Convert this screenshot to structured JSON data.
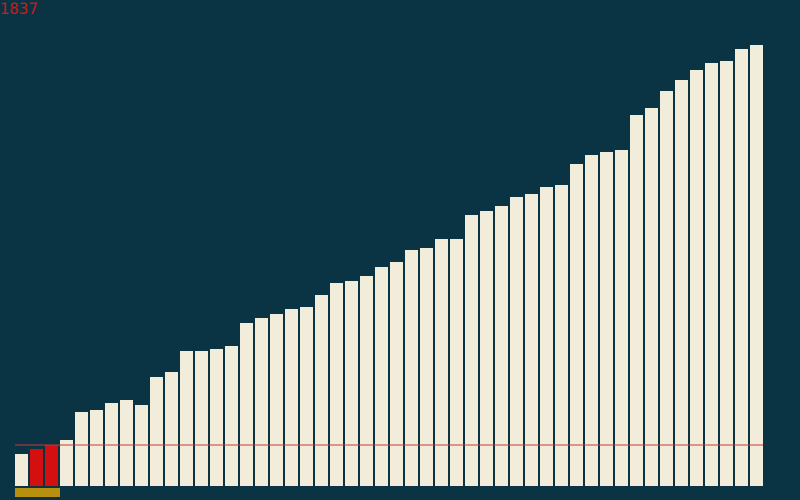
{
  "step_counter": "1837",
  "colors": {
    "background": "#0a3443",
    "bar_default": "#f2ecda",
    "bar_highlight": "#d40f0f",
    "reference_line": "#c63a3a",
    "range_marker": "#b8900f",
    "counter_text": "#d41b1b"
  },
  "chart_data": {
    "type": "bar",
    "title": "",
    "xlabel": "",
    "ylabel": "",
    "ylim": [
      0,
      441
    ],
    "values": [
      32,
      37,
      41,
      46,
      74,
      76,
      83,
      86,
      81,
      109,
      114,
      135,
      135,
      137,
      140,
      163,
      168,
      172,
      177,
      179,
      191,
      203,
      205,
      210,
      219,
      224,
      236,
      238,
      247,
      247,
      271,
      275,
      280,
      289,
      292,
      299,
      301,
      322,
      331,
      334,
      336,
      371,
      378,
      395,
      406,
      416,
      423,
      425,
      437,
      441
    ],
    "highlighted_indices": [
      1,
      2
    ],
    "reference_value": 41,
    "range_marker": [
      0,
      2
    ]
  }
}
